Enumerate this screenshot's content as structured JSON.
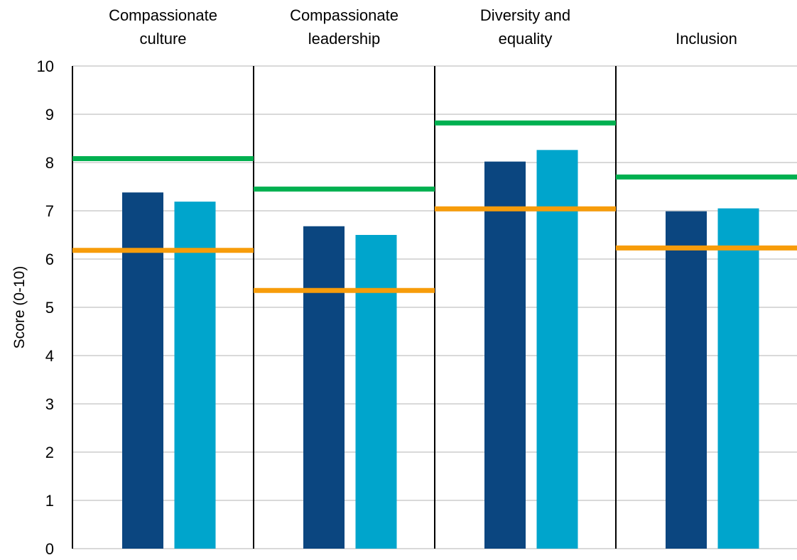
{
  "chart_data": {
    "type": "bar",
    "title": "",
    "ylabel": "Score (0-10)",
    "ylim": [
      0,
      10
    ],
    "y_ticks": [
      0,
      1,
      2,
      3,
      4,
      5,
      6,
      7,
      8,
      9,
      10
    ],
    "grid": true,
    "categories": [
      [
        "Compassionate",
        "culture"
      ],
      [
        "Compassionate",
        "leadership"
      ],
      [
        "Diversity and",
        "equality"
      ],
      [
        "Inclusion"
      ]
    ],
    "series": [
      {
        "values": [
          7.38,
          6.68,
          8.02,
          6.99
        ],
        "color": "#0B4680"
      },
      {
        "values": [
          7.19,
          6.5,
          8.26,
          7.05
        ],
        "color": "#00A5CC"
      }
    ],
    "reference_lines": [
      {
        "values": [
          8.08,
          7.45,
          8.82,
          7.7
        ],
        "color": "#00B050"
      },
      {
        "values": [
          6.18,
          5.35,
          7.04,
          6.23
        ],
        "color": "#F79C0A"
      }
    ]
  }
}
